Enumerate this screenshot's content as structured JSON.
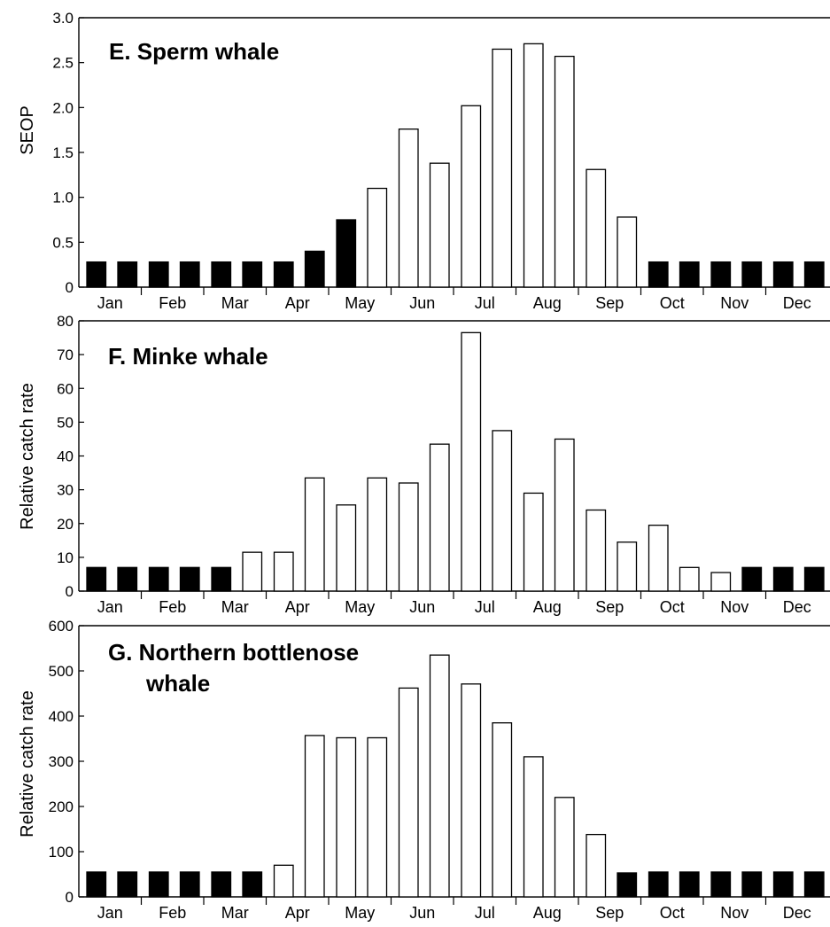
{
  "months": [
    "Jan",
    "Feb",
    "Mar",
    "Apr",
    "May",
    "Jun",
    "Jul",
    "Aug",
    "Sep",
    "Oct",
    "Nov",
    "Dec"
  ],
  "chart_data": [
    {
      "type": "bar",
      "title": "E. Sperm whale",
      "ylabel": "SEOP",
      "xlabel": "",
      "ylim": [
        0,
        3.0
      ],
      "yticks": [
        "3.0",
        "2.5",
        "2.0",
        "1.5",
        "1.0",
        "0.5",
        "0"
      ],
      "ytick_values": [
        3.0,
        2.5,
        2.0,
        1.5,
        1.0,
        0.5,
        0
      ],
      "grid": false,
      "bars_per_month": 2,
      "values": [
        0.28,
        0.28,
        0.28,
        0.28,
        0.28,
        0.28,
        0.28,
        0.4,
        0.75,
        1.1,
        1.76,
        1.38,
        2.02,
        2.65,
        2.71,
        2.57,
        1.31,
        0.78,
        0.28,
        0.28,
        0.28,
        0.28,
        0.28,
        0.28
      ],
      "fill": [
        "black",
        "black",
        "black",
        "black",
        "black",
        "black",
        "black",
        "black",
        "black",
        "white",
        "white",
        "white",
        "white",
        "white",
        "white",
        "white",
        "white",
        "white",
        "black",
        "black",
        "black",
        "black",
        "black",
        "black"
      ]
    },
    {
      "type": "bar",
      "title": "F. Minke whale",
      "ylabel": "Relative catch rate",
      "xlabel": "",
      "ylim": [
        0,
        80
      ],
      "yticks": [
        "80",
        "70",
        "60",
        "50",
        "40",
        "30",
        "20",
        "10",
        "0"
      ],
      "ytick_values": [
        80,
        70,
        60,
        50,
        40,
        30,
        20,
        10,
        0
      ],
      "grid": false,
      "bars_per_month": 2,
      "values": [
        7,
        7,
        7,
        7,
        7,
        11.5,
        11.5,
        33.5,
        25.5,
        33.5,
        32,
        43.5,
        76.5,
        47.5,
        29,
        45,
        24,
        14.5,
        19.5,
        7,
        5.5,
        7,
        7,
        7
      ],
      "fill": [
        "black",
        "black",
        "black",
        "black",
        "black",
        "white",
        "white",
        "white",
        "white",
        "white",
        "white",
        "white",
        "white",
        "white",
        "white",
        "white",
        "white",
        "white",
        "white",
        "white",
        "white",
        "black",
        "black",
        "black"
      ]
    },
    {
      "type": "bar",
      "title": "G. Northern bottlenose whale",
      "title_lines": [
        "G. Northern bottlenose",
        "whale"
      ],
      "ylabel": "Relative catch rate",
      "xlabel": "",
      "ylim": [
        0,
        600
      ],
      "yticks": [
        "600",
        "500",
        "400",
        "300",
        "200",
        "100",
        "0"
      ],
      "ytick_values": [
        600,
        500,
        400,
        300,
        200,
        100,
        0
      ],
      "grid": false,
      "bars_per_month": 2,
      "values": [
        55,
        55,
        55,
        55,
        55,
        55,
        70,
        357,
        352,
        352,
        462,
        535,
        471,
        385,
        310,
        220,
        138,
        53,
        55,
        55,
        55,
        55,
        55,
        55
      ],
      "fill": [
        "black",
        "black",
        "black",
        "black",
        "black",
        "black",
        "white",
        "white",
        "white",
        "white",
        "white",
        "white",
        "white",
        "white",
        "white",
        "white",
        "white",
        "black",
        "black",
        "black",
        "black",
        "black",
        "black",
        "black"
      ]
    }
  ]
}
